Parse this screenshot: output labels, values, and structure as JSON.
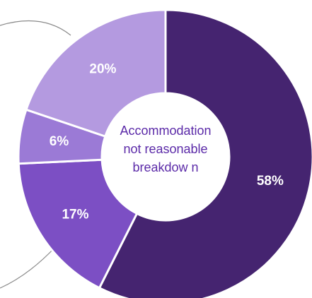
{
  "colors": {
    "background": "#ffffff",
    "center_text": "#5b2aa8",
    "connector": "#8a8a8a",
    "divider": "#ffffff"
  },
  "center": {
    "lines": [
      "Accommodation",
      "not reasonable",
      "breakdow n"
    ]
  },
  "chart_data": {
    "type": "pie",
    "style": "donut",
    "start": "top, clockwise",
    "slices": [
      {
        "value": 58,
        "label": "58%",
        "color": "#452470"
      },
      {
        "value": 17,
        "label": "17%",
        "color": "#7c4fc4"
      },
      {
        "value": 6,
        "label": "6%",
        "color": "#9b7ad6"
      },
      {
        "value": 20,
        "label": "20%",
        "color": "#b49ae0"
      }
    ],
    "legend": "none"
  }
}
